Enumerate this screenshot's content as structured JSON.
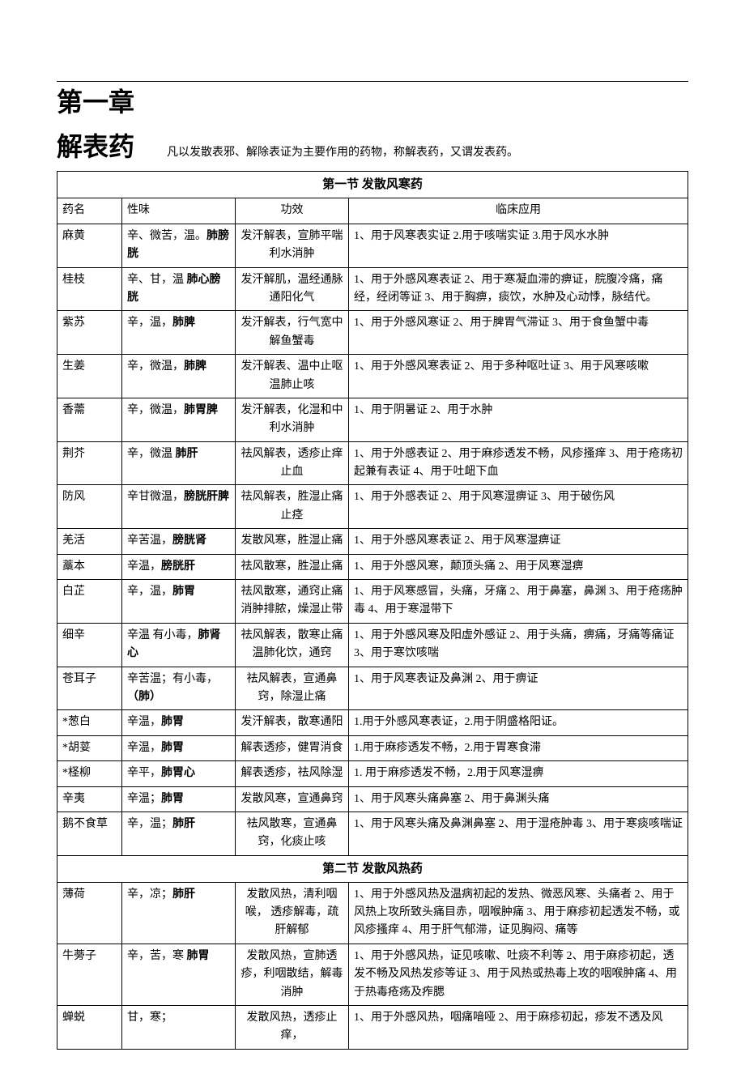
{
  "chapter": {
    "title": "第一章",
    "subtitle": "解表药",
    "description": "凡以发散表邪、解除表证为主要作用的药物，称解表药，又谓发表药。"
  },
  "section1": {
    "title": "第一节  发散风寒药",
    "headers": {
      "name": "药名",
      "flavor": "性味",
      "effect": "功效",
      "clinical": "临床应用"
    },
    "rows": [
      {
        "name": "麻黄",
        "flavor_pre": "辛、微苦，温。",
        "flavor_bold": "肺膀胱",
        "effect": "发汗解表，宣肺平喘 利水消肿",
        "clinical": "1、用于风寒表实证 2.用于咳喘实证 3.用于风水水肿"
      },
      {
        "name": "桂枝",
        "flavor_pre": "辛、甘，温 ",
        "flavor_bold": "肺心膀胱",
        "effect": "发汗解肌，温经通脉 通阳化气",
        "clinical": "1、用于外感风寒表证 2、用于寒凝血滞的痹证，脘腹冷痛，痛经，经闭等证 3、用于胸痹，痰饮，水肿及心动悸，脉结代。"
      },
      {
        "name": "紫苏",
        "flavor_pre": "辛，温，",
        "flavor_bold": "肺脾",
        "effect": "发汗解表，行气宽中 解鱼蟹毒",
        "clinical": "1、用于外感风寒证 2、用于脾胃气滞证 3、用于食鱼蟹中毒"
      },
      {
        "name": "生姜",
        "flavor_pre": "辛，微温，",
        "flavor_bold": "肺脾",
        "effect": "发汗解表、温中止呕 温肺止咳",
        "clinical": "1、用于外感风寒表证 2、用于多种呕吐证 3、用于风寒咳嗽"
      },
      {
        "name": "香薷",
        "flavor_pre": "辛，微温，",
        "flavor_bold": "肺胃脾",
        "effect": "发汗解表，化湿和中 利水消肿",
        "clinical": "1、用于阴暑证 2、用于水肿"
      },
      {
        "name": "荆芥",
        "flavor_pre": "辛，微温 ",
        "flavor_bold": "肺肝",
        "effect": "祛风解表，透疹止痒 止血",
        "clinical": "1、用于外感表证 2、用于麻疹透发不畅，风疹搔痒 3、用于疮疡初起兼有表证 4、用于吐衄下血"
      },
      {
        "name": "防风",
        "flavor_pre": "辛甘微温，",
        "flavor_bold": "膀胱肝脾",
        "effect": "祛风解表，胜湿止痛 止痉",
        "clinical": "1、用于外感表证 2、用于风寒湿痹证 3、用于破伤风"
      },
      {
        "name": "羌活",
        "flavor_pre": "辛苦温，",
        "flavor_bold": "膀胱肾",
        "effect": "发散风寒，胜湿止痛",
        "clinical": "1、用于外感风寒表证 2、用于风寒湿痹证"
      },
      {
        "name": "藁本",
        "flavor_pre": "辛温，",
        "flavor_bold": "膀胱肝",
        "effect": "祛风散寒，胜湿止痛",
        "clinical": "1、用于外感风寒，颠顶头痛  2、用于风寒湿痹"
      },
      {
        "name": "白芷",
        "flavor_pre": "辛，温，",
        "flavor_bold": "肺胃",
        "effect": "祛风散寒，通窍止痛 消肿排脓，燥湿止带",
        "clinical": "1、用于风寒感冒，头痛，牙痛 2、用于鼻塞，鼻渊 3、用于疮疡肿毒 4、用于寒湿带下"
      },
      {
        "name": "细辛",
        "flavor_pre": "辛温 有小毒，",
        "flavor_bold": "肺肾心",
        "effect": "祛风解表，散寒止痛 温肺化饮，通窍",
        "clinical": "1、用于外感风寒及阳虚外感证 2、用于头痛，痹痛，牙痛等痛证 3、用于寒饮咳喘"
      },
      {
        "name": "苍耳子",
        "flavor_pre": "辛苦温；有小毒，",
        "flavor_bold": "（肺）",
        "effect": "祛风解表，宣通鼻窍，除湿止痛",
        "clinical": "1、用于风寒表证及鼻渊 2、用于痹证"
      },
      {
        "name": "*葱白",
        "flavor_pre": "辛温，",
        "flavor_bold": "肺胃",
        "effect": "发汗解表，散寒通阳",
        "clinical": "1.用于外感风寒表证，2.用于阴盛格阳证。"
      },
      {
        "name": "*胡荽",
        "flavor_pre": "辛温，",
        "flavor_bold": "肺胃",
        "effect": "解表透疹，健胃消食",
        "clinical": "1.用于麻疹透发不畅，2.用于胃寒食滞"
      },
      {
        "name": "*柽柳",
        "flavor_pre": "辛平，",
        "flavor_bold": "肺胃心",
        "effect": "解表透疹，祛风除湿",
        "clinical": "1. 用于麻疹透发不畅，2.用于风寒湿痹"
      },
      {
        "name": "辛夷",
        "flavor_pre": "辛温；",
        "flavor_bold": "肺胃",
        "effect": "发散风寒，宣通鼻窍",
        "clinical": "1、用于风寒头痛鼻塞 2、用于鼻渊头痛"
      },
      {
        "name": "鹅不食草",
        "flavor_pre": "辛，温；",
        "flavor_bold": "肺肝",
        "effect": "祛风散寒，宣通鼻窍，化痰止咳",
        "clinical": "1、用于风寒头痛及鼻渊鼻塞 2、用于湿疮肿毒 3、用于寒痰咳喘证"
      }
    ]
  },
  "section2": {
    "title": "第二节    发散风热药",
    "rows": [
      {
        "name": "薄荷",
        "flavor_pre": "辛，凉；",
        "flavor_bold": "肺肝",
        "effect": "发散风热，清利咽喉， 透疹解毒，疏肝解郁",
        "clinical": "1、用于外感风热及温病初起的发热、微恶风寒、头痛者 2、用于风热上攻所致头痛目赤，咽喉肿痛 3、用于麻疹初起透发不畅，或风疹搔痒 4、用于肝气郁滞，证见胸闷、痛等"
      },
      {
        "name": "牛蒡子",
        "flavor_pre": "辛，苦，寒 ",
        "flavor_bold": "肺胃",
        "effect": "发散风热，宣肺透疹，利咽散结，解毒消肿",
        "clinical": "1、用于外感风热，证见咳嗽、吐痰不利等 2、用于麻疹初起，透发不畅及风热发疹等证 3、用于风热或热毒上攻的咽喉肿痛 4、用于热毒疮疡及痄腮"
      },
      {
        "name": "蝉蜕",
        "flavor_pre": "甘，寒；",
        "flavor_bold": "",
        "effect": "发散风热，透疹止痒，",
        "clinical": "1、用于外感风热，咽痛喑哑 2、用于麻疹初起，疹发不透及风"
      }
    ]
  }
}
